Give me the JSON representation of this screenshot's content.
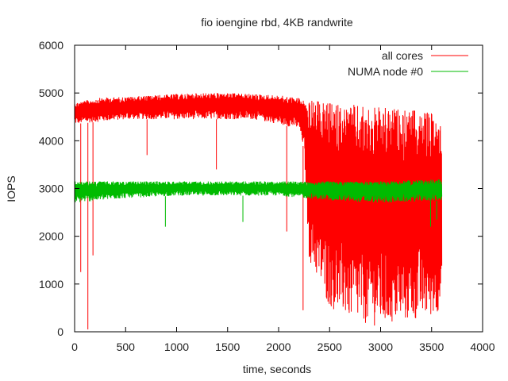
{
  "chart_data": {
    "type": "line",
    "title": "fio ioengine rbd, 4KB randwrite",
    "xlabel": "time, seconds",
    "ylabel": "IOPS",
    "xlim": [
      0,
      4000
    ],
    "ylim": [
      0,
      6000
    ],
    "xticks": [
      0,
      500,
      1000,
      1500,
      2000,
      2500,
      3000,
      3500,
      4000
    ],
    "yticks": [
      0,
      1000,
      2000,
      3000,
      4000,
      5000,
      6000
    ],
    "grid": false,
    "legend_position": "top-right",
    "series": [
      {
        "name": "all cores",
        "color": "#ff0000",
        "x_range": [
          0,
          3600
        ],
        "envelope": {
          "x": [
            0,
            250,
            500,
            750,
            1000,
            1250,
            1500,
            1750,
            2000,
            2200,
            2250,
            2300,
            2500,
            2750,
            3000,
            3250,
            3500,
            3600
          ],
          "upper": [
            4800,
            4900,
            4920,
            4950,
            4980,
            5000,
            5000,
            4980,
            4950,
            4900,
            4850,
            4850,
            4800,
            4750,
            4700,
            4650,
            4600,
            4500
          ],
          "lower": [
            4350,
            4400,
            4450,
            4450,
            4450,
            4450,
            4450,
            4450,
            4350,
            4250,
            3800,
            1500,
            500,
            200,
            100,
            200,
            300,
            500
          ]
        },
        "dips": [
          {
            "x": 60,
            "y": 1250
          },
          {
            "x": 130,
            "y": 50
          },
          {
            "x": 180,
            "y": 1600
          },
          {
            "x": 710,
            "y": 3700
          },
          {
            "x": 1390,
            "y": 3400
          },
          {
            "x": 2080,
            "y": 2100
          },
          {
            "x": 2240,
            "y": 450
          }
        ]
      },
      {
        "name": "NUMA node #0",
        "color": "#00bb00",
        "x_range": [
          0,
          3600
        ],
        "envelope": {
          "x": [
            0,
            500,
            1000,
            1500,
            2000,
            2500,
            3000,
            3600
          ],
          "upper": [
            3150,
            3150,
            3150,
            3150,
            3150,
            3150,
            3150,
            3200
          ],
          "lower": [
            2700,
            2800,
            2850,
            2850,
            2850,
            2750,
            2700,
            2750
          ]
        },
        "dips": [
          {
            "x": 890,
            "y": 2200
          },
          {
            "x": 1650,
            "y": 2300
          },
          {
            "x": 3490,
            "y": 2200
          },
          {
            "x": 3550,
            "y": 2350
          }
        ]
      }
    ]
  }
}
